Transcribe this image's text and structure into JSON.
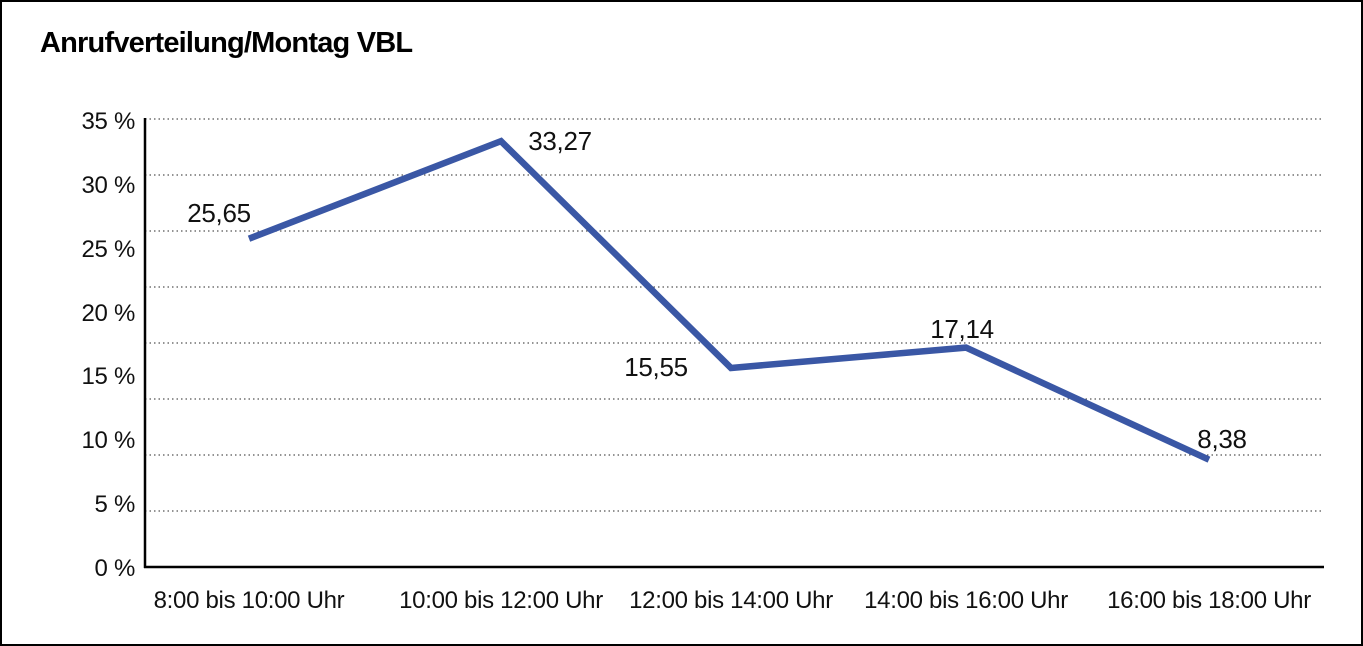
{
  "chart_data": {
    "type": "line",
    "title": "Anrufverteilung/Montag VBL",
    "categories": [
      "8:00 bis 10:00 Uhr",
      "10:00 bis 12:00 Uhr",
      "12:00 bis 14:00 Uhr",
      "14:00 bis 16:00 Uhr",
      "16:00 bis 18:00 Uhr"
    ],
    "series": [
      {
        "name": "",
        "values": [
          25.65,
          33.27,
          15.55,
          17.14,
          8.38
        ]
      }
    ],
    "value_labels": [
      "25,65",
      "33,27",
      "15,55",
      "17,14",
      "8,38"
    ],
    "y_tick_labels": [
      "35 %",
      "30 %",
      "25 %",
      "20 %",
      "15 %",
      "10 %",
      "5 %",
      "0 %"
    ],
    "ylim": [
      0,
      35
    ],
    "xlabel": "",
    "ylabel": "",
    "grid": "horizontal-dotted",
    "legend": "none",
    "colors": {
      "line": "#3A57A5",
      "axis": "#000000",
      "gridline": "#555555",
      "text": "#111111",
      "background": "#FFFFFF"
    }
  }
}
